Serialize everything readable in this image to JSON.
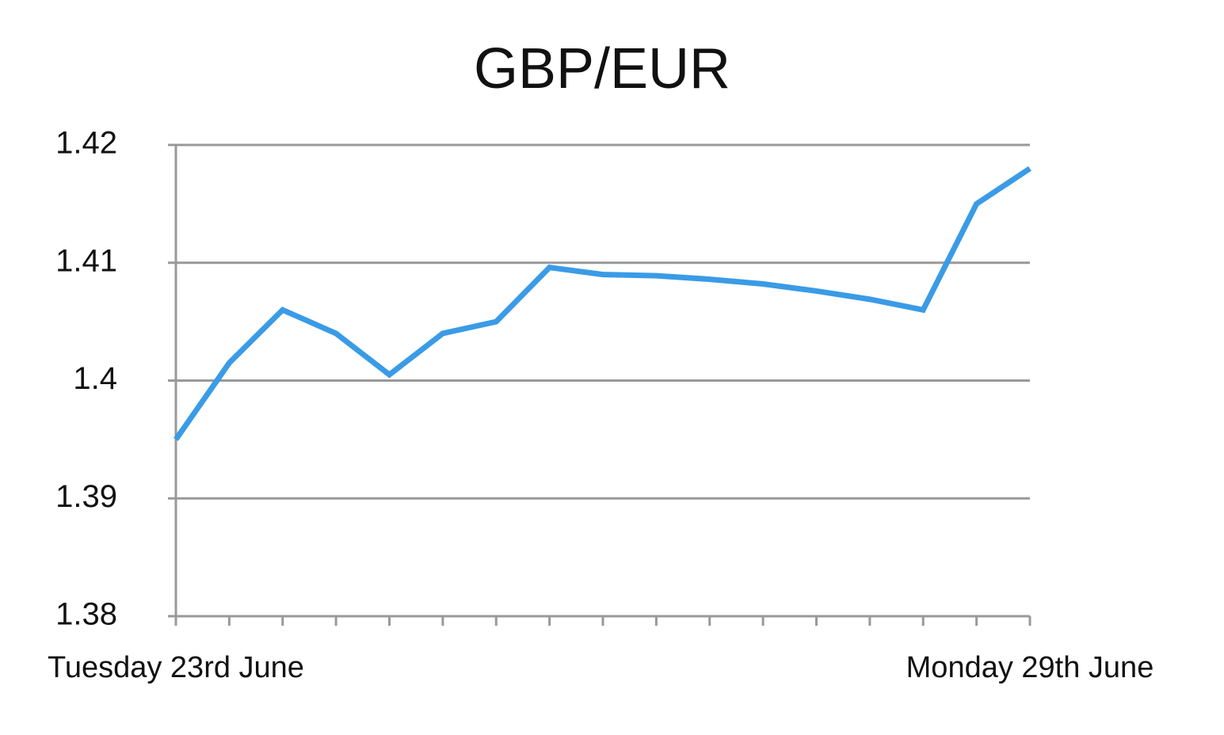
{
  "chart_data": {
    "type": "line",
    "title": "GBP/EUR",
    "categories": [
      "Tuesday 23rd June",
      null,
      null,
      null,
      null,
      null,
      null,
      null,
      null,
      null,
      null,
      null,
      null,
      null,
      null,
      null,
      "Monday 29th June"
    ],
    "values": [
      1.395,
      1.4015,
      1.406,
      1.404,
      1.4005,
      1.404,
      1.405,
      1.4096,
      1.409,
      1.4089,
      1.4086,
      1.4082,
      1.4076,
      1.4069,
      1.406,
      1.415,
      1.418
    ],
    "color": "#3a9be6",
    "ylim": [
      1.38,
      1.42
    ],
    "yticks": [
      1.38,
      1.39,
      1.4,
      1.41,
      1.42
    ],
    "grid": true
  }
}
